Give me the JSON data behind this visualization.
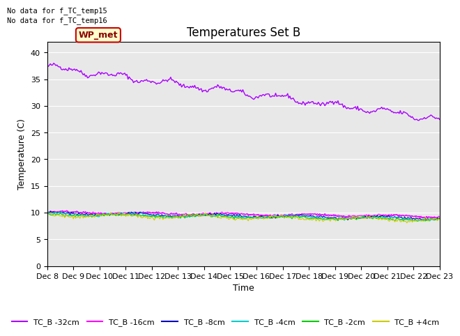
{
  "title": "Temperatures Set B",
  "xlabel": "Time",
  "ylabel": "Temperature (C)",
  "annotations": [
    "No data for f_TC_temp15",
    "No data for f_TC_temp16"
  ],
  "wp_met_label": "WP_met",
  "ylim": [
    0,
    42
  ],
  "yticks": [
    0,
    5,
    10,
    15,
    20,
    25,
    30,
    35,
    40
  ],
  "xtick_labels": [
    "Dec 8",
    "Dec 9",
    "Dec 10",
    "Dec 11",
    "Dec 12",
    "Dec 13",
    "Dec 14",
    "Dec 15",
    "Dec 16",
    "Dec 17",
    "Dec 18",
    "Dec 19",
    "Dec 20",
    "Dec 21",
    "Dec 22",
    "Dec 23"
  ],
  "series_colors": {
    "WP_met": "#aa00ff",
    "TC_B -32cm": "#aa00ff",
    "TC_B -16cm": "#ff00ff",
    "TC_B -8cm": "#0000bb",
    "TC_B -4cm": "#00cccc",
    "TC_B -2cm": "#00cc00",
    "TC_B +4cm": "#cccc00"
  },
  "bg_color": "#e8e8e8",
  "fig_color": "#ffffff",
  "title_fontsize": 12,
  "label_fontsize": 9,
  "tick_fontsize": 8,
  "legend_fontsize": 8,
  "wp_box_facecolor": "#ffffcc",
  "wp_box_edgecolor": "#cc0000",
  "wp_text_color": "#880000"
}
